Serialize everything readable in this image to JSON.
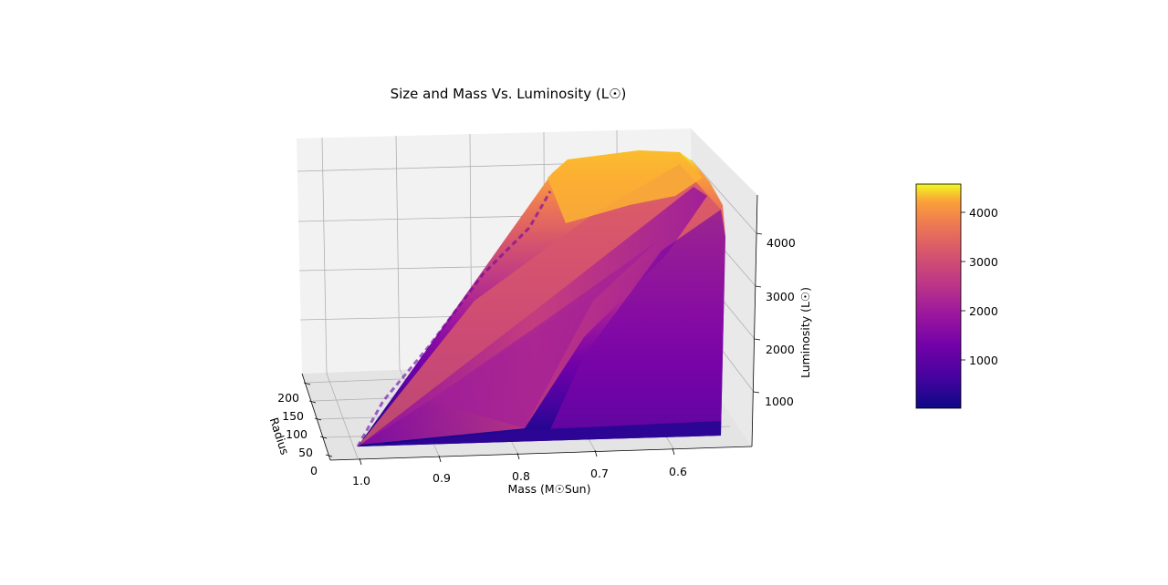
{
  "chart_data": {
    "type": "surface3d",
    "title": "Size and Mass Vs. Luminosity (L☉)",
    "xlabel": "Mass (M☉Sun)",
    "ylabel": "Radius",
    "zlabel": "Luminosity (L☉)",
    "xlim": [
      0.5,
      1.0
    ],
    "ylim": [
      0,
      220
    ],
    "zlim": [
      0,
      4600
    ],
    "x_ticks": [
      "1.0",
      "0.9",
      "0.8",
      "0.7",
      "0.6"
    ],
    "y_ticks": [
      "0",
      "50",
      "100",
      "150",
      "200"
    ],
    "z_ticks": [
      "1000",
      "2000",
      "3000",
      "4000"
    ],
    "colormap": "plasma",
    "colorbar": {
      "min": 0,
      "max": 4600,
      "ticks": [
        "1000",
        "2000",
        "3000",
        "4000"
      ]
    },
    "grid": true,
    "surface_summary": {
      "mass_range": [
        0.53,
        1.0
      ],
      "radius_range": [
        0,
        220
      ],
      "luminosity_range": [
        20,
        4600
      ]
    }
  }
}
